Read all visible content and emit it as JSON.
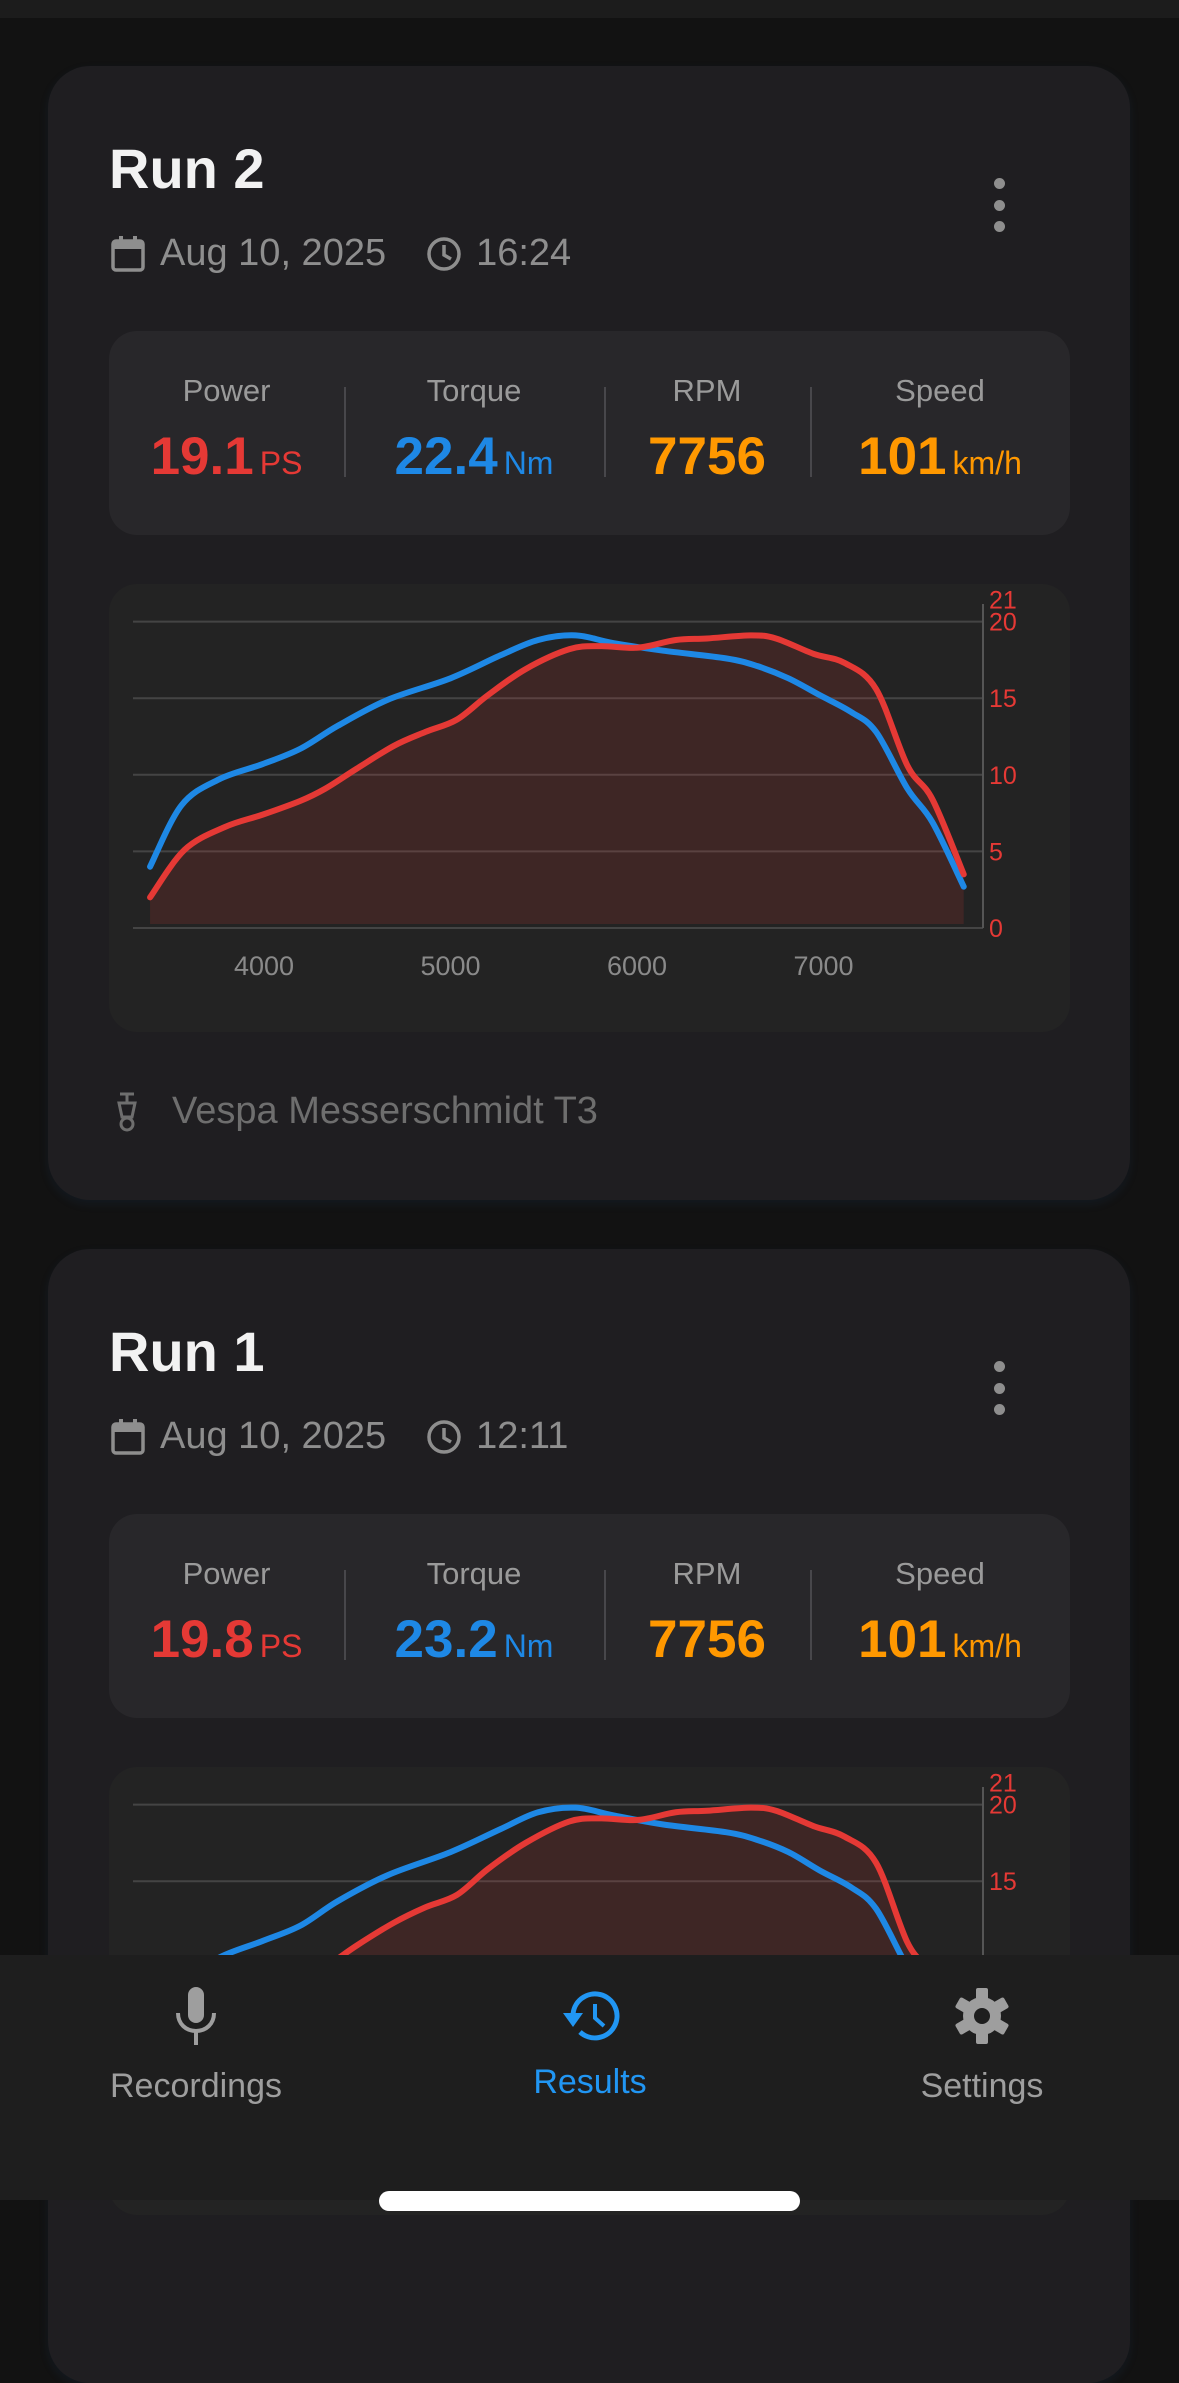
{
  "colors": {
    "power": "#e53935",
    "torque": "#1e88e5",
    "rpm": "#ff9800",
    "speed": "#ff9800",
    "accent": "#2196f3"
  },
  "runs": [
    {
      "title": "Run 2",
      "date": "Aug 10, 2025",
      "time": "16:24",
      "stats": [
        {
          "label": "Power",
          "value": "19.1",
          "unit": "PS"
        },
        {
          "label": "Torque",
          "value": "22.4",
          "unit": "Nm"
        },
        {
          "label": "RPM",
          "value": "7756",
          "unit": ""
        },
        {
          "label": "Speed",
          "value": "101",
          "unit": "km/h"
        }
      ],
      "vehicle": "Vespa Messerschmidt T3",
      "chart_data": {
        "type": "line",
        "xticks": [
          "4000",
          "5000",
          "6000",
          "7000"
        ],
        "yticks": [
          "0",
          "5",
          "10",
          "15",
          "20",
          "21"
        ],
        "ylim": [
          0,
          21
        ],
        "grid": true,
        "series": [
          {
            "key": "power",
            "fill": true,
            "points": [
              [
                3389,
                2.0
              ],
              [
                3574,
                5.1
              ],
              [
                3792,
                6.6
              ],
              [
                3993,
                7.4
              ],
              [
                4195,
                8.3
              ],
              [
                4329,
                9.1
              ],
              [
                4497,
                10.4
              ],
              [
                4698,
                11.9
              ],
              [
                4866,
                12.8
              ],
              [
                5034,
                13.6
              ],
              [
                5201,
                15.2
              ],
              [
                5403,
                16.9
              ],
              [
                5638,
                18.2
              ],
              [
                5805,
                18.4
              ],
              [
                6007,
                18.3
              ],
              [
                6208,
                18.8
              ],
              [
                6376,
                18.9
              ],
              [
                6611,
                19.1
              ],
              [
                6745,
                18.9
              ],
              [
                6946,
                17.9
              ],
              [
                7114,
                17.3
              ],
              [
                7282,
                15.6
              ],
              [
                7450,
                10.6
              ],
              [
                7584,
                8.4
              ],
              [
                7752,
                3.5
              ]
            ]
          },
          {
            "key": "torque",
            "fill": false,
            "points": [
              [
                3389,
                4.0
              ],
              [
                3557,
                8.0
              ],
              [
                3758,
                9.7
              ],
              [
                3993,
                10.7
              ],
              [
                4195,
                11.7
              ],
              [
                4396,
                13.2
              ],
              [
                4664,
                14.9
              ],
              [
                5000,
                16.3
              ],
              [
                5268,
                17.8
              ],
              [
                5470,
                18.8
              ],
              [
                5671,
                19.1
              ],
              [
                5872,
                18.6
              ],
              [
                6141,
                18.1
              ],
              [
                6477,
                17.6
              ],
              [
                6644,
                17.1
              ],
              [
                6812,
                16.3
              ],
              [
                6980,
                15.2
              ],
              [
                7148,
                14.1
              ],
              [
                7282,
                12.8
              ],
              [
                7450,
                9.1
              ],
              [
                7584,
                6.9
              ],
              [
                7752,
                2.7
              ]
            ]
          }
        ]
      }
    },
    {
      "title": "Run 1",
      "date": "Aug 10, 2025",
      "time": "12:11",
      "stats": [
        {
          "label": "Power",
          "value": "19.8",
          "unit": "PS"
        },
        {
          "label": "Torque",
          "value": "23.2",
          "unit": "Nm"
        },
        {
          "label": "RPM",
          "value": "7756",
          "unit": ""
        },
        {
          "label": "Speed",
          "value": "101",
          "unit": "km/h"
        }
      ],
      "chart_data": {
        "type": "line",
        "yticks": [
          "15",
          "20",
          "21"
        ],
        "ylim": [
          0,
          21
        ],
        "grid": true,
        "series": [
          {
            "key": "power",
            "fill": true,
            "points": [
              [
                3389,
                2.1
              ],
              [
                3574,
                5.3
              ],
              [
                3792,
                6.8
              ],
              [
                3993,
                7.7
              ],
              [
                4195,
                8.6
              ],
              [
                4329,
                9.4
              ],
              [
                4497,
                10.8
              ],
              [
                4698,
                12.3
              ],
              [
                4866,
                13.3
              ],
              [
                5034,
                14.1
              ],
              [
                5201,
                15.8
              ],
              [
                5403,
                17.5
              ],
              [
                5638,
                18.9
              ],
              [
                5805,
                19.1
              ],
              [
                6007,
                19.0
              ],
              [
                6208,
                19.5
              ],
              [
                6376,
                19.6
              ],
              [
                6611,
                19.8
              ],
              [
                6745,
                19.6
              ],
              [
                6946,
                18.6
              ],
              [
                7114,
                17.9
              ],
              [
                7282,
                16.2
              ],
              [
                7450,
                11.0
              ],
              [
                7584,
                8.7
              ],
              [
                7752,
                3.6
              ]
            ]
          },
          {
            "key": "torque",
            "fill": false,
            "points": [
              [
                3389,
                4.1
              ],
              [
                3557,
                8.3
              ],
              [
                3758,
                10.0
              ],
              [
                3993,
                11.1
              ],
              [
                4195,
                12.1
              ],
              [
                4396,
                13.7
              ],
              [
                4664,
                15.4
              ],
              [
                5000,
                16.9
              ],
              [
                5268,
                18.4
              ],
              [
                5470,
                19.5
              ],
              [
                5671,
                19.8
              ],
              [
                5872,
                19.3
              ],
              [
                6141,
                18.7
              ],
              [
                6477,
                18.2
              ],
              [
                6644,
                17.7
              ],
              [
                6812,
                16.9
              ],
              [
                6980,
                15.7
              ],
              [
                7148,
                14.6
              ],
              [
                7282,
                13.2
              ],
              [
                7450,
                9.4
              ],
              [
                7584,
                7.1
              ],
              [
                7752,
                2.8
              ]
            ]
          }
        ]
      }
    }
  ],
  "nav": {
    "items": [
      {
        "label": "Recordings",
        "icon": "mic-icon",
        "active": false
      },
      {
        "label": "Results",
        "icon": "history-icon",
        "active": true
      },
      {
        "label": "Settings",
        "icon": "gear-icon",
        "active": false
      }
    ]
  }
}
